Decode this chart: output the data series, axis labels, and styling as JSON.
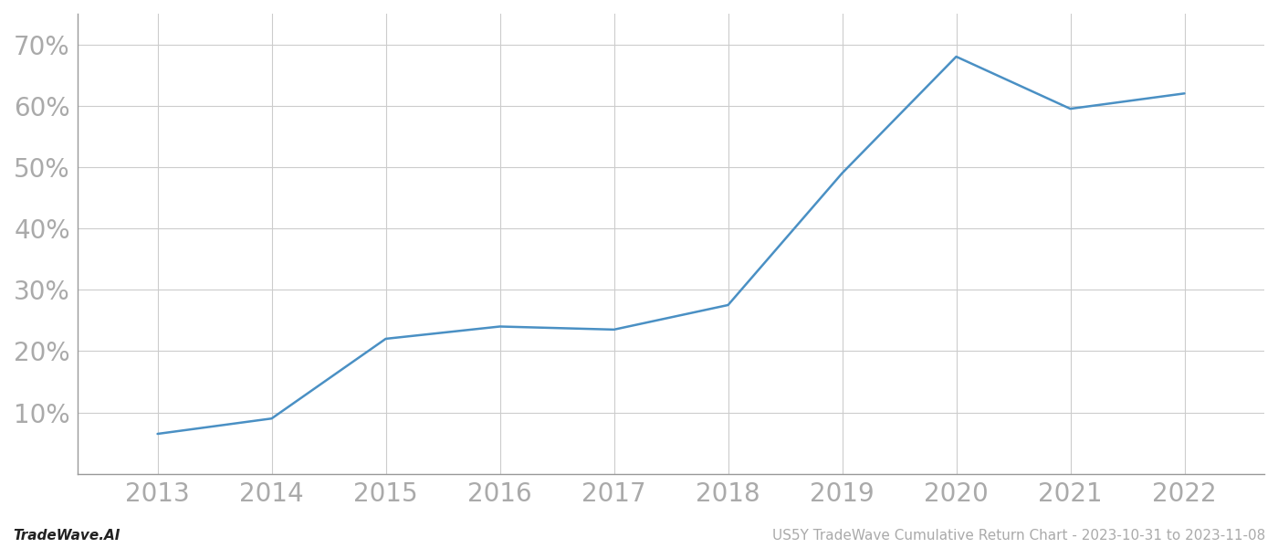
{
  "x_years": [
    2013,
    2014,
    2015,
    2016,
    2017,
    2018,
    2019,
    2020,
    2021,
    2022
  ],
  "y_values": [
    6.5,
    9.0,
    22.0,
    24.0,
    23.5,
    27.5,
    49.0,
    68.0,
    59.5,
    62.0
  ],
  "line_color": "#4a90c4",
  "line_width": 1.8,
  "background_color": "#ffffff",
  "grid_color": "#cccccc",
  "footer_left": "TradeWave.AI",
  "footer_right": "US5Y TradeWave Cumulative Return Chart - 2023-10-31 to 2023-11-08",
  "ylim": [
    0,
    75
  ],
  "yticks": [
    10,
    20,
    30,
    40,
    50,
    60,
    70
  ],
  "xlim": [
    2012.3,
    2022.7
  ],
  "tick_fontsize": 20,
  "footer_fontsize": 11,
  "tick_color": "#aaaaaa",
  "spine_color": "#999999",
  "footer_left_color": "#222222",
  "footer_right_color": "#aaaaaa"
}
